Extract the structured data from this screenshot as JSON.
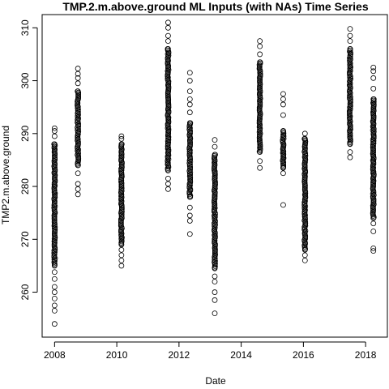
{
  "chart_data": {
    "type": "scatter",
    "title": "TMP.2.m.above.ground ML Inputs (with NAs) Time Series",
    "xlabel": "Date",
    "ylabel": "TMP2.m.above.ground",
    "xlim": [
      2007.6,
      2018.7
    ],
    "ylim": [
      251.5,
      312.5
    ],
    "x_ticks": [
      2008,
      2010,
      2012,
      2014,
      2016,
      2018
    ],
    "y_ticks": [
      260,
      270,
      280,
      290,
      300,
      310
    ],
    "grid": false,
    "marker": "open-circle",
    "clusters": [
      {
        "x": 2008.0,
        "min": 254.0,
        "max": 291.0,
        "outliers": [
          254.0,
          256.5,
          257.5,
          258.8,
          260.0,
          261.0,
          262.5,
          263.8,
          265.0,
          288.0,
          289.5,
          290.5,
          291.0
        ]
      },
      {
        "x": 2008.75,
        "min": 278.5,
        "max": 302.3,
        "outliers": [
          278.5,
          279.5,
          280.5,
          282.5,
          284.0,
          298.0,
          299.5,
          300.5,
          301.3,
          302.3
        ]
      },
      {
        "x": 2010.15,
        "min": 265.0,
        "max": 289.5,
        "outliers": [
          265.0,
          266.0,
          267.0,
          268.0,
          269.0,
          288.0,
          289.0,
          289.5
        ]
      },
      {
        "x": 2011.65,
        "min": 279.5,
        "max": 311.0,
        "outliers": [
          279.5,
          280.5,
          281.5,
          283.0,
          306.0,
          307.5,
          308.5,
          310.0,
          311.0
        ]
      },
      {
        "x": 2012.35,
        "min": 271.0,
        "max": 301.5,
        "outliers": [
          271.0,
          273.5,
          274.5,
          276.0,
          278.0,
          292.0,
          294.0,
          295.5,
          296.5,
          298.0,
          300.0,
          301.5
        ]
      },
      {
        "x": 2013.15,
        "min": 256.0,
        "max": 288.8,
        "outliers": [
          256.0,
          258.5,
          260.0,
          262.0,
          263.0,
          264.5,
          286.0,
          287.5,
          288.8
        ]
      },
      {
        "x": 2014.6,
        "min": 283.5,
        "max": 307.5,
        "outliers": [
          283.5,
          284.8,
          286.5,
          303.5,
          305.0,
          306.5,
          307.5
        ]
      },
      {
        "x": 2015.35,
        "min": 276.5,
        "max": 297.5,
        "outliers": [
          276.5,
          282.5,
          283.5,
          290.5,
          293.5,
          295.5,
          296.5,
          297.5
        ]
      },
      {
        "x": 2016.05,
        "min": 266.0,
        "max": 290.0,
        "outliers": [
          266.0,
          267.0,
          268.0,
          289.0,
          290.0
        ]
      },
      {
        "x": 2017.5,
        "min": 285.5,
        "max": 309.8,
        "outliers": [
          285.5,
          286.5,
          288.0,
          306.0,
          307.5,
          308.5,
          309.8
        ]
      },
      {
        "x": 2018.25,
        "min": 267.8,
        "max": 302.5,
        "outliers": [
          267.8,
          268.3,
          271.5,
          273.0,
          274.0,
          296.5,
          298.5,
          300.5,
          301.8,
          302.5
        ]
      }
    ]
  }
}
